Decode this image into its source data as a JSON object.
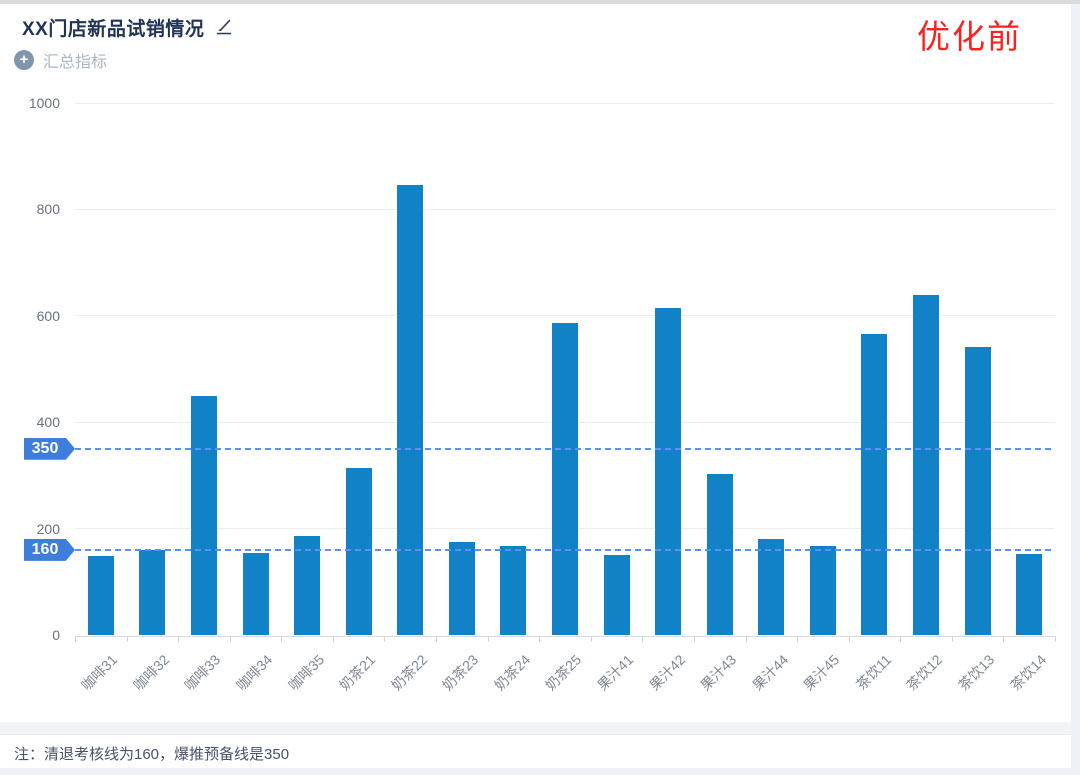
{
  "header": {
    "title": "XX门店新品试销情况",
    "annotation": "优化前"
  },
  "toolbar": {
    "summary_label": "汇总指标"
  },
  "chart_data": {
    "type": "bar",
    "title": "XX门店新品试销情况",
    "categories": [
      "咖啡31",
      "咖啡32",
      "咖啡33",
      "咖啡34",
      "咖啡35",
      "奶茶21",
      "奶茶22",
      "奶茶23",
      "奶茶24",
      "奶茶25",
      "果汁41",
      "果汁42",
      "果汁43",
      "果汁44",
      "果汁45",
      "茶饮11",
      "茶饮12",
      "茶饮13",
      "茶饮14"
    ],
    "values": [
      148,
      160,
      450,
      155,
      187,
      314,
      845,
      175,
      168,
      586,
      151,
      615,
      303,
      181,
      167,
      566,
      640,
      542,
      152
    ],
    "xlabel": "",
    "ylabel": "",
    "ylim": [
      0,
      1000
    ],
    "yticks": [
      0,
      200,
      400,
      600,
      800,
      1000
    ],
    "grid": true,
    "legend_position": "none",
    "bar_color": "#1182c5",
    "reference_lines": [
      {
        "value": 350,
        "label": "350"
      },
      {
        "value": 160,
        "label": "160"
      }
    ],
    "reference_dash_color": "#5b8ff9",
    "reference_badge_color": "#3d7edb"
  },
  "footer": {
    "note": "注：清退考核线为160，爆推预备线是350"
  },
  "colors": {
    "annotation_red": "#fa2121",
    "bar_blue": "#1182c5",
    "badge_blue": "#3d7edb",
    "dash_blue": "#5b8ff9"
  }
}
